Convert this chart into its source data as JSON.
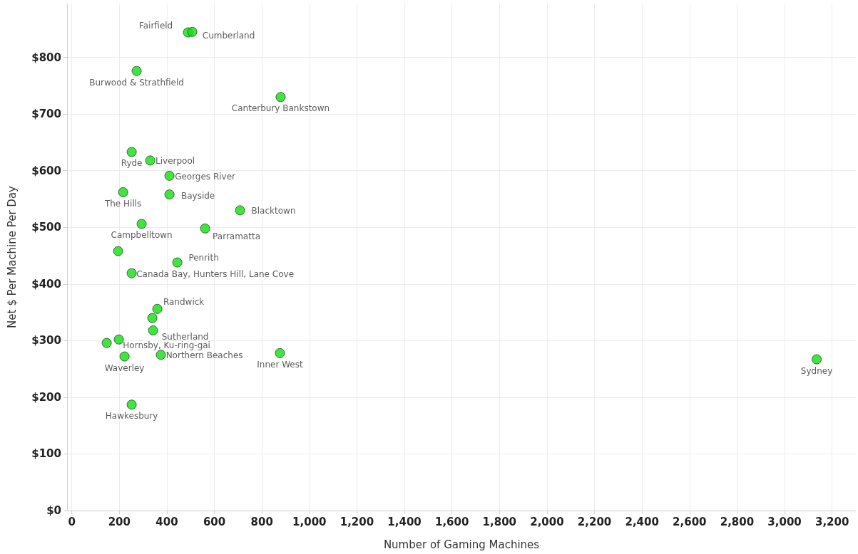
{
  "chart_data": {
    "type": "scatter",
    "xlabel": "Number of Gaming Machines",
    "ylabel": "Net $ Per Machine Per Day",
    "x": [
      489,
      507,
      273,
      879,
      252,
      330,
      411,
      411,
      216,
      708,
      294,
      561,
      195,
      444,
      252,
      360,
      339,
      342,
      198,
      147,
      222,
      375,
      876,
      252,
      3135
    ],
    "series": [
      {
        "color": "#11dd11",
        "values": [
          844,
          845,
          776,
          730,
          633,
          618,
          591,
          558,
          562,
          530,
          506,
          498,
          458,
          438,
          419,
          356,
          340,
          318,
          302,
          296,
          272,
          275,
          278,
          187,
          267
        ]
      }
    ],
    "annotations": [
      {
        "text": "Fairfield",
        "x": 489,
        "y": 844
      },
      {
        "text": "Cumberland",
        "x": 507,
        "y": 845
      },
      {
        "text": "Burwood & Strathfield",
        "x": 273,
        "y": 776
      },
      {
        "text": "Canterbury Bankstown",
        "x": 879,
        "y": 730
      },
      {
        "text": "Ryde",
        "x": 252,
        "y": 633
      },
      {
        "text": "Liverpool",
        "x": 330,
        "y": 618
      },
      {
        "text": "Georges River",
        "x": 411,
        "y": 591
      },
      {
        "text": "Bayside",
        "x": 411,
        "y": 558
      },
      {
        "text": "The Hills",
        "x": 216,
        "y": 562
      },
      {
        "text": "Blacktown",
        "x": 708,
        "y": 530
      },
      {
        "text": "Campbelltown",
        "x": 294,
        "y": 506
      },
      {
        "text": "Parramatta",
        "x": 561,
        "y": 498
      },
      {
        "text": "Penrith",
        "x": 444,
        "y": 438
      },
      {
        "text": "Canada Bay, Hunters Hill, Lane Cove",
        "x": 252,
        "y": 419
      },
      {
        "text": "Randwick",
        "x": 360,
        "y": 356
      },
      {
        "text": "Sutherland",
        "x": 342,
        "y": 318
      },
      {
        "text": "Hornsby, Ku-ring-gai",
        "x": 198,
        "y": 302
      },
      {
        "text": "Waverley",
        "x": 222,
        "y": 272
      },
      {
        "text": "Northern Beaches",
        "x": 375,
        "y": 275
      },
      {
        "text": "Inner West",
        "x": 876,
        "y": 278
      },
      {
        "text": "Hawkesbury",
        "x": 252,
        "y": 187
      },
      {
        "text": "Sydney",
        "x": 3135,
        "y": 267
      }
    ],
    "xlim": [
      -20,
      3300
    ],
    "xticks": [
      0,
      200,
      400,
      600,
      800,
      {
        "value": 1000,
        "label": "1,000"
      },
      {
        "value": 1200,
        "label": "1,200"
      },
      {
        "value": 1400,
        "label": "1,400"
      },
      {
        "value": 1600,
        "label": "1,600"
      },
      {
        "value": 1800,
        "label": "1,800"
      },
      {
        "value": 2000,
        "label": "2,000"
      },
      {
        "value": 2200,
        "label": "2,200"
      },
      {
        "value": 2400,
        "label": "2,400"
      },
      {
        "value": 2600,
        "label": "2,600"
      },
      {
        "value": 2800,
        "label": "2,800"
      },
      {
        "value": 3000,
        "label": "3,000"
      },
      {
        "value": 3200,
        "label": "3,200"
      }
    ],
    "ylim": [
      0,
      895
    ],
    "yticks": [
      {
        "value": 0,
        "label": "$0"
      },
      {
        "value": 100,
        "label": "$100"
      },
      {
        "value": 200,
        "label": "$200"
      },
      {
        "value": 300,
        "label": "$300"
      },
      {
        "value": 400,
        "label": "$400"
      },
      {
        "value": 500,
        "label": "$500"
      },
      {
        "value": 600,
        "label": "$600"
      },
      {
        "value": 700,
        "label": "$700"
      },
      {
        "value": 800,
        "label": "$800"
      }
    ],
    "grid": true,
    "marker": "circle"
  }
}
